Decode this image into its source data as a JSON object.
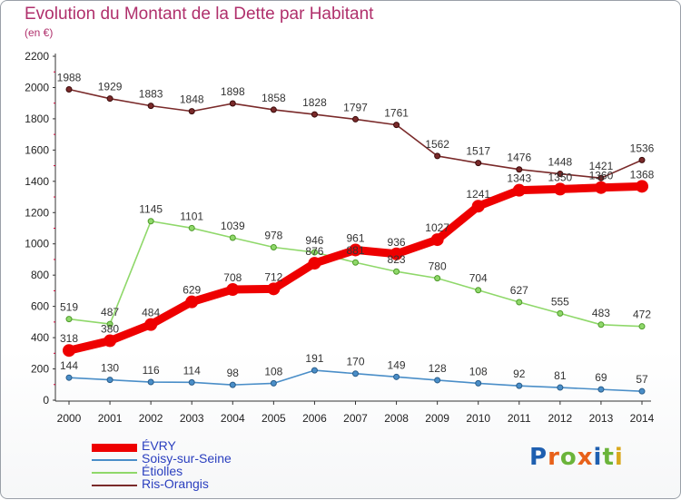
{
  "title": "Evolution du Montant de la Dette par Habitant",
  "subtitle": "(en €)",
  "logo": [
    "P",
    "r",
    "o",
    "x",
    "i",
    "t",
    "i"
  ],
  "logo_colors": [
    "#1e5fb0",
    "#e8611a",
    "#6bb43a",
    "#e8611a",
    "#1e5fb0",
    "#6bb43a",
    "#d9a81c"
  ],
  "chart_data": {
    "type": "line",
    "x": [
      "2000",
      "2001",
      "2002",
      "2003",
      "2004",
      "2005",
      "2006",
      "2007",
      "2008",
      "2009",
      "2010",
      "2011",
      "2012",
      "2013",
      "2014"
    ],
    "ylim": [
      0,
      2200
    ],
    "yticks": [
      "0",
      "200",
      "400",
      "600",
      "800",
      "1000",
      "1200",
      "1400",
      "1600",
      "1800",
      "2000",
      "2200"
    ],
    "grid": false,
    "legend_position": "bottom-left",
    "series": [
      {
        "name": "ÉVRY",
        "color": "#ee0000",
        "values": [
          318,
          380,
          484,
          629,
          708,
          712,
          876,
          961,
          936,
          1027,
          1241,
          1343,
          1350,
          1360,
          1368
        ],
        "labels": [
          "318",
          "380",
          "484",
          "629",
          "708",
          "712",
          "876",
          "961",
          "936",
          "1027",
          "1241",
          "1343",
          "1350",
          "1360",
          "1368"
        ]
      },
      {
        "name": "Soisy-sur-Seine",
        "color": "#4a8ec8",
        "values": [
          144,
          130,
          116,
          114,
          98,
          108,
          191,
          170,
          149,
          128,
          108,
          92,
          81,
          69,
          57
        ],
        "labels": [
          "144",
          "130",
          "116",
          "114",
          "98",
          "108",
          "191",
          "170",
          "149",
          "128",
          "108",
          "92",
          "81",
          "69",
          "57"
        ]
      },
      {
        "name": "Étiolles",
        "color": "#8fd86a",
        "values": [
          519,
          487,
          1145,
          1101,
          1039,
          978,
          946,
          881,
          823,
          780,
          704,
          627,
          555,
          483,
          472
        ],
        "labels": [
          "519",
          "487",
          "1145",
          "1101",
          "1039",
          "978",
          "946",
          "881",
          "823",
          "780",
          "704",
          "627",
          "555",
          "483",
          "472"
        ]
      },
      {
        "name": "Ris-Orangis",
        "color": "#7a2a2a",
        "values": [
          1988,
          1929,
          1883,
          1848,
          1898,
          1858,
          1828,
          1797,
          1761,
          1562,
          1517,
          1476,
          1448,
          1421,
          1536
        ],
        "labels": [
          "1988",
          "1929",
          "1883",
          "1848",
          "1898",
          "1858",
          "1828",
          "1797",
          "1761",
          "1562",
          "1517",
          "1476",
          "1448",
          "1421",
          "1536"
        ]
      }
    ]
  }
}
